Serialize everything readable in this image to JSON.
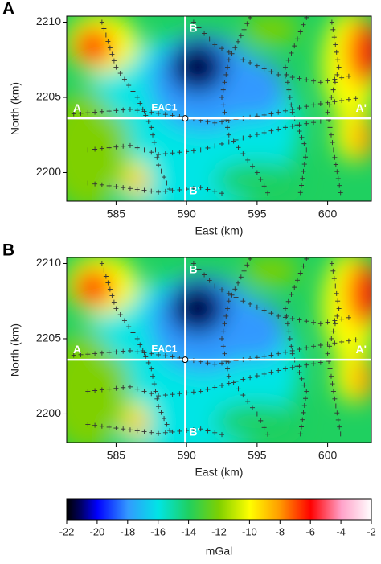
{
  "chart_data": [
    {
      "type": "map",
      "panel_label": "A",
      "xlabel": "East (km)",
      "ylabel": "North (km)",
      "xlim": [
        581.5,
        603.1
      ],
      "ylim": [
        2198.1,
        2210.4
      ],
      "xticks": [
        585,
        590,
        595,
        600
      ],
      "yticks": [
        2200,
        2205,
        2210
      ],
      "profiles": [
        {
          "start": "A",
          "end": "A'",
          "orientation": "horizontal",
          "value": 2203.6
        },
        {
          "start": "B",
          "end": "B'",
          "orientation": "vertical",
          "value": 589.9
        }
      ],
      "well": {
        "name": "EAC1",
        "x": 589.9,
        "y": 2203.6
      }
    },
    {
      "type": "map",
      "panel_label": "B",
      "xlabel": "East (km)",
      "ylabel": "North (km)",
      "xlim": [
        581.5,
        603.1
      ],
      "ylim": [
        2198.1,
        2210.4
      ],
      "xticks": [
        585,
        590,
        595,
        600
      ],
      "yticks": [
        2200,
        2205,
        2210
      ],
      "profiles": [
        {
          "start": "A",
          "end": "A'",
          "orientation": "horizontal",
          "value": 2203.6
        },
        {
          "start": "B",
          "end": "B'",
          "orientation": "vertical",
          "value": 589.9
        }
      ],
      "well": {
        "name": "EAC1",
        "x": 589.9,
        "y": 2203.6
      }
    },
    {
      "type": "colorbar",
      "xlabel": "mGal",
      "xlim": [
        -22,
        -2
      ],
      "xticks": [
        -22,
        -20,
        -18,
        -16,
        -14,
        -12,
        -10,
        -8,
        -6,
        -4,
        -2
      ],
      "colorscale": [
        {
          "value": -22,
          "color": "#000000"
        },
        {
          "value": -21,
          "color": "#00006e"
        },
        {
          "value": -20,
          "color": "#0000ff"
        },
        {
          "value": -18,
          "color": "#3399ff"
        },
        {
          "value": -16,
          "color": "#00e5e5"
        },
        {
          "value": -14,
          "color": "#1fd060"
        },
        {
          "value": -12,
          "color": "#7fd000"
        },
        {
          "value": -10,
          "color": "#ffff00"
        },
        {
          "value": -8,
          "color": "#ff9900"
        },
        {
          "value": -6,
          "color": "#ff0000"
        },
        {
          "value": -4,
          "color": "#ffa0c8"
        },
        {
          "value": -2,
          "color": "#ffffff"
        }
      ]
    }
  ]
}
